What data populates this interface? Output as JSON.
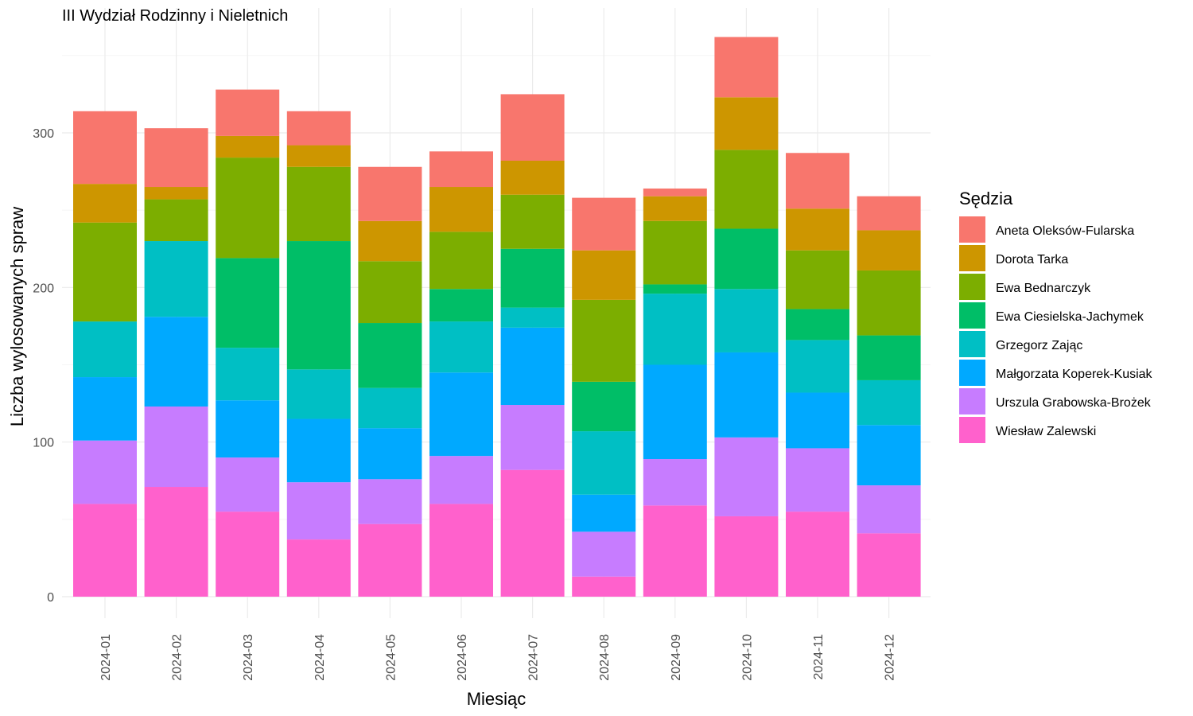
{
  "chart_data": {
    "type": "bar",
    "stacked": true,
    "title": "III Wydział Rodzinny i Nieletnich",
    "xlabel": "Miesiąc",
    "ylabel": "Liczba wylosowanych spraw",
    "ylim": [
      0,
      380
    ],
    "yticks": [
      0,
      100,
      200,
      300
    ],
    "grid": true,
    "legend_title": "Sędzia",
    "legend_position": "right",
    "categories": [
      "2024-01",
      "2024-02",
      "2024-03",
      "2024-04",
      "2024-05",
      "2024-06",
      "2024-07",
      "2024-08",
      "2024-09",
      "2024-10",
      "2024-11",
      "2024-12"
    ],
    "series": [
      {
        "name": "Wiesław Zalewski",
        "color": "#FF61CC",
        "values": [
          60,
          71,
          55,
          37,
          47,
          60,
          82,
          13,
          59,
          52,
          55,
          41
        ]
      },
      {
        "name": "Urszula Grabowska-Brożek",
        "color": "#C77CFF",
        "values": [
          41,
          52,
          35,
          37,
          29,
          31,
          42,
          29,
          30,
          51,
          41,
          31
        ]
      },
      {
        "name": "Małgorzata Koperek-Kusiak",
        "color": "#00A9FF",
        "values": [
          41,
          58,
          37,
          41,
          33,
          54,
          50,
          24,
          61,
          55,
          36,
          39
        ]
      },
      {
        "name": "Grzegorz Zając",
        "color": "#00BFC4",
        "values": [
          36,
          49,
          34,
          32,
          26,
          33,
          13,
          41,
          46,
          41,
          34,
          29
        ]
      },
      {
        "name": "Ewa Ciesielska-Jachymek",
        "color": "#00BE67",
        "values": [
          0,
          0,
          58,
          83,
          42,
          21,
          38,
          32,
          6,
          39,
          20,
          29
        ]
      },
      {
        "name": "Ewa Bednarczyk",
        "color": "#7CAE00",
        "values": [
          64,
          27,
          65,
          48,
          40,
          37,
          35,
          53,
          41,
          51,
          38,
          42
        ]
      },
      {
        "name": "Dorota Tarka",
        "color": "#CD9600",
        "values": [
          25,
          8,
          14,
          14,
          26,
          29,
          22,
          32,
          16,
          34,
          27,
          26
        ]
      },
      {
        "name": "Aneta Oleksów-Fularska",
        "color": "#F8766D",
        "values": [
          47,
          38,
          30,
          22,
          35,
          23,
          43,
          34,
          5,
          39,
          36,
          22
        ]
      }
    ],
    "legend_order": [
      "Aneta Oleksów-Fularska",
      "Dorota Tarka",
      "Ewa Bednarczyk",
      "Ewa Ciesielska-Jachymek",
      "Grzegorz Zając",
      "Małgorzata Koperek-Kusiak",
      "Urszula Grabowska-Brożek",
      "Wiesław Zalewski"
    ]
  }
}
